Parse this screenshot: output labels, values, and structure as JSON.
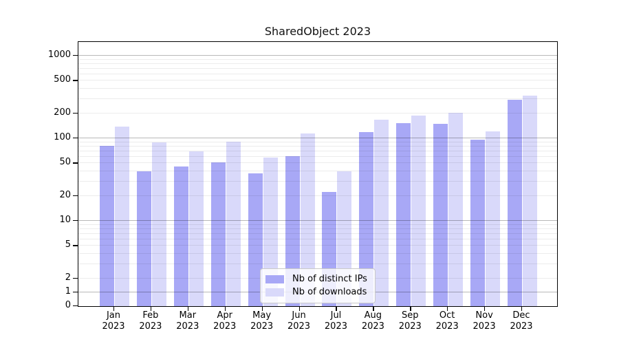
{
  "chart_data": {
    "type": "bar",
    "title": "SharedObject 2023",
    "categories": [
      "Jan",
      "Feb",
      "Mar",
      "Apr",
      "May",
      "Jun",
      "Jul",
      "Aug",
      "Sep",
      "Oct",
      "Nov",
      "Dec"
    ],
    "year_label": "2023",
    "series": [
      {
        "name": "Nb of distinct IPs",
        "color": "#a8a8f6",
        "values": [
          80,
          39,
          45,
          50,
          37,
          60,
          22,
          118,
          150,
          146,
          95,
          290
        ]
      },
      {
        "name": "Nb of downloads",
        "color": "#d9d9fa",
        "values": [
          135,
          88,
          68,
          90,
          57,
          113,
          39,
          165,
          187,
          200,
          120,
          322
        ]
      }
    ],
    "xlabel": "",
    "ylabel": "",
    "yscale": "symlog",
    "ylim": [
      0,
      1470
    ],
    "ytick_values": [
      1000,
      500,
      200,
      100,
      50,
      20,
      10,
      5,
      2,
      1,
      0
    ],
    "ytick_labels": [
      "1000",
      "500",
      "200",
      "100",
      "50",
      "20",
      "10",
      "5",
      "2",
      "1",
      "0"
    ],
    "grid": "both",
    "legend_position": "lower center",
    "colors": {
      "grid_major": "#b8b8b8",
      "grid_minor": "#ececec",
      "axis": "#000000",
      "background": "#ffffff"
    }
  }
}
